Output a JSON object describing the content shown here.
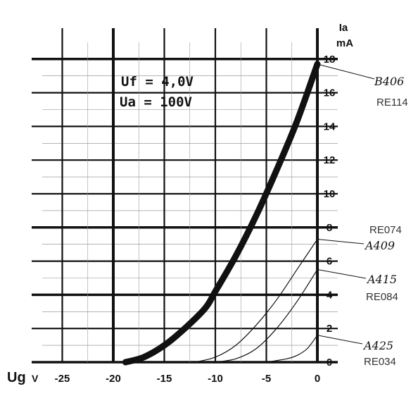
{
  "chart_data": {
    "type": "line",
    "x_axis": {
      "label": "Ug",
      "unit": "V",
      "range": [
        -27,
        0
      ],
      "ticks": [
        -25,
        -20,
        -15,
        -10,
        -5,
        0
      ],
      "tick_labels": [
        "-25",
        "-20",
        "-15",
        "-10",
        "-5",
        "0"
      ]
    },
    "y_axis": {
      "label": "Ia",
      "unit": "mA",
      "range": [
        0,
        18
      ],
      "ticks": [
        0,
        2,
        4,
        6,
        8,
        10,
        12,
        14,
        16,
        18
      ],
      "tick_labels": [
        "0",
        "2",
        "4",
        "6",
        "8",
        "10",
        "12",
        "14",
        "16",
        "18"
      ]
    },
    "grid": true,
    "conditions": [
      "Uf = 4,0V",
      "Ua = 100V"
    ],
    "series": [
      {
        "name": "B406",
        "alt_name": "RE114",
        "x": [
          -18.8,
          -17,
          -15,
          -13,
          -11,
          -10,
          -8,
          -6,
          -4,
          -2,
          0
        ],
        "y": [
          0,
          0.3,
          1.0,
          2.0,
          3.2,
          4.2,
          6.3,
          8.7,
          11.4,
          14.3,
          17.7
        ]
      },
      {
        "name": "A409",
        "alt_name": "RE074",
        "x": [
          -12,
          -10,
          -8,
          -6,
          -4,
          -2,
          0
        ],
        "y": [
          0,
          0.3,
          1.0,
          2.2,
          3.7,
          5.5,
          7.3
        ]
      },
      {
        "name": "A415",
        "alt_name": "RE084",
        "x": [
          -10,
          -8,
          -6,
          -4,
          -2,
          0
        ],
        "y": [
          0,
          0.2,
          0.8,
          2.0,
          3.6,
          5.5
        ]
      },
      {
        "name": "A425",
        "alt_name": "RE034",
        "x": [
          -5,
          -3,
          -2,
          -1,
          0
        ],
        "y": [
          0,
          0.2,
          0.4,
          0.8,
          1.6
        ]
      }
    ]
  }
}
